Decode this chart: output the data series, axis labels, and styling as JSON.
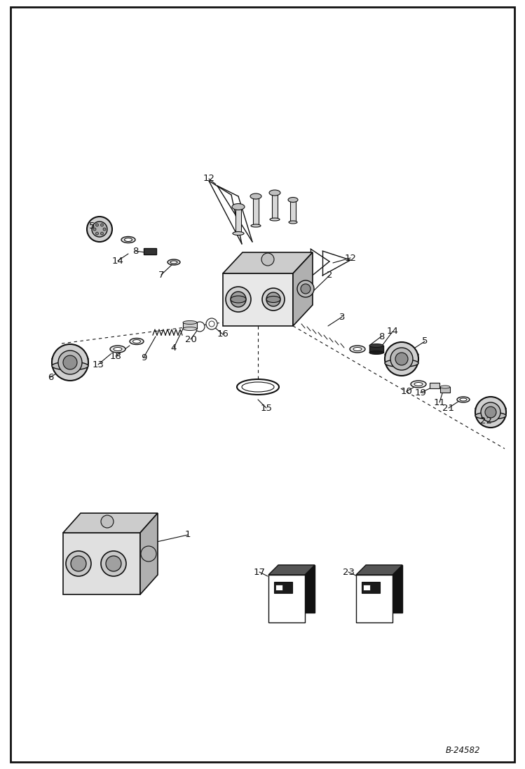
{
  "bg_color": "#ffffff",
  "border_color": "#111111",
  "line_color": "#111111",
  "text_color": "#111111",
  "figure_width": 7.49,
  "figure_height": 10.97,
  "part_code": "B-24582",
  "dpi": 100
}
